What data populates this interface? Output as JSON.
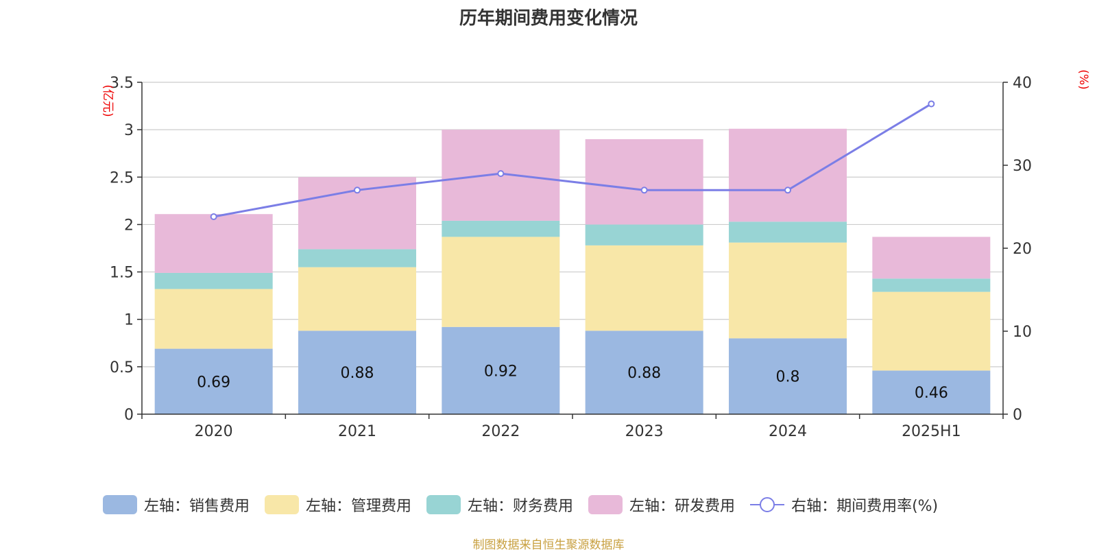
{
  "chart_data": {
    "type": "bar",
    "title": "历年期间费用变化情况",
    "categories": [
      "2020",
      "2021",
      "2022",
      "2023",
      "2024",
      "2025H1"
    ],
    "left_axis": {
      "unit_label": "(亿元)",
      "range": [
        0,
        3.5
      ],
      "ticks": [
        "0",
        "0.5",
        "1",
        "1.5",
        "2",
        "2.5",
        "3",
        "3.5"
      ]
    },
    "right_axis": {
      "unit_label": "(%)",
      "range": [
        0,
        40
      ],
      "ticks": [
        "0",
        "10",
        "20",
        "30",
        "40"
      ]
    },
    "series": [
      {
        "name": "左轴：销售费用",
        "type": "bar",
        "stack": "total",
        "color": "#9bb8e1",
        "show_labels": true,
        "values": [
          0.69,
          0.88,
          0.92,
          0.88,
          0.8,
          0.46
        ]
      },
      {
        "name": "左轴：管理费用",
        "type": "bar",
        "stack": "total",
        "color": "#f8e7a8",
        "show_labels": false,
        "values": [
          0.63,
          0.67,
          0.95,
          0.9,
          1.01,
          0.83
        ]
      },
      {
        "name": "左轴：财务费用",
        "type": "bar",
        "stack": "total",
        "color": "#98d4d4",
        "show_labels": false,
        "values": [
          0.17,
          0.19,
          0.17,
          0.22,
          0.22,
          0.14
        ]
      },
      {
        "name": "左轴：研发费用",
        "type": "bar",
        "stack": "total",
        "color": "#e8b9d9",
        "show_labels": false,
        "values": [
          0.62,
          0.76,
          0.96,
          0.9,
          0.98,
          0.44
        ]
      },
      {
        "name": "右轴：期间费用率(%)",
        "type": "line",
        "axis": "right",
        "color": "#7b7ee6",
        "values": [
          23.8,
          27.0,
          29.0,
          27.0,
          27.0,
          37.4
        ]
      }
    ],
    "grid": true,
    "legend_position": "bottom"
  },
  "source_note": "制图数据来自恒生聚源数据库"
}
